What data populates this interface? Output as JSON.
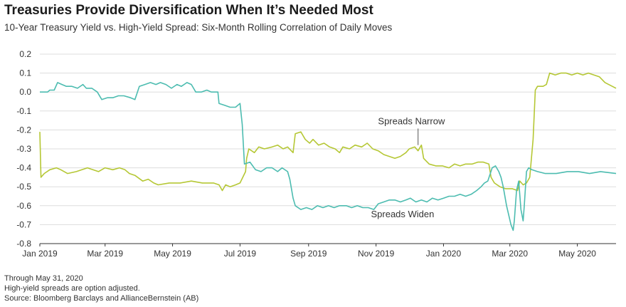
{
  "title": "Treasuries Provide Diversification When It’s Needed Most",
  "subtitle": "10-Year Treasury Yield vs. High-Yield Spread: Six-Month Rolling Correlation of Daily Moves",
  "notes": [
    "Through May 31, 2020",
    "High-yield spreads are option adjusted.",
    "Source: Bloomberg Barclays and AllianceBernstein (AB)"
  ],
  "colors": {
    "narrow": "#b5c734",
    "widen": "#4cbcb0",
    "grid": "#dddddd",
    "axis": "#333333"
  },
  "chart_data": {
    "type": "line",
    "ylim": [
      -0.8,
      0.2
    ],
    "yticks": [
      "0.2",
      "0.1",
      "0.0",
      "-0.1",
      "-0.2",
      "-0.3",
      "-0.4",
      "-0.5",
      "-0.6",
      "-0.7",
      "-0.8"
    ],
    "xlim": [
      "2019-01-01",
      "2020-06-05"
    ],
    "xticks": [
      {
        "date": "2019-01-01",
        "label": "Jan 2019"
      },
      {
        "date": "2019-03-01",
        "label": "Mar 2019"
      },
      {
        "date": "2019-05-01",
        "label": "May 2019"
      },
      {
        "date": "2019-07-01",
        "label": "Jul 2019"
      },
      {
        "date": "2019-09-01",
        "label": "Sep 2019"
      },
      {
        "date": "2019-11-01",
        "label": "Nov 2019"
      },
      {
        "date": "2020-01-01",
        "label": "Jan 2020"
      },
      {
        "date": "2020-03-01",
        "label": "Mar 2020"
      },
      {
        "date": "2020-05-01",
        "label": "May 2020"
      }
    ],
    "annotations": [
      {
        "text": "Spreads Narrow",
        "date": "2019-12-03",
        "value": -0.17
      },
      {
        "text": "Spreads Widen",
        "date": "2019-11-25",
        "value": -0.66
      }
    ],
    "series": [
      {
        "name": "Spreads Narrow",
        "points": [
          [
            "2019-01-01",
            -0.21
          ],
          [
            "2019-01-02",
            -0.45
          ],
          [
            "2019-01-05",
            -0.43
          ],
          [
            "2019-01-10",
            -0.41
          ],
          [
            "2019-01-16",
            -0.4
          ],
          [
            "2019-01-20",
            -0.41
          ],
          [
            "2019-01-26",
            -0.43
          ],
          [
            "2019-02-03",
            -0.42
          ],
          [
            "2019-02-08",
            -0.41
          ],
          [
            "2019-02-13",
            -0.4
          ],
          [
            "2019-02-18",
            -0.41
          ],
          [
            "2019-02-23",
            -0.42
          ],
          [
            "2019-03-01",
            -0.4
          ],
          [
            "2019-03-08",
            -0.41
          ],
          [
            "2019-03-14",
            -0.4
          ],
          [
            "2019-03-19",
            -0.41
          ],
          [
            "2019-03-23",
            -0.43
          ],
          [
            "2019-03-28",
            -0.44
          ],
          [
            "2019-04-04",
            -0.47
          ],
          [
            "2019-04-09",
            -0.46
          ],
          [
            "2019-04-14",
            -0.48
          ],
          [
            "2019-04-18",
            -0.49
          ],
          [
            "2019-04-28",
            -0.48
          ],
          [
            "2019-05-08",
            -0.48
          ],
          [
            "2019-05-18",
            -0.47
          ],
          [
            "2019-05-28",
            -0.48
          ],
          [
            "2019-06-07",
            -0.48
          ],
          [
            "2019-06-12",
            -0.49
          ],
          [
            "2019-06-15",
            -0.52
          ],
          [
            "2019-06-18",
            -0.49
          ],
          [
            "2019-06-22",
            -0.5
          ],
          [
            "2019-06-27",
            -0.49
          ],
          [
            "2019-07-01",
            -0.48
          ],
          [
            "2019-07-06",
            -0.42
          ],
          [
            "2019-07-07",
            -0.35
          ],
          [
            "2019-07-09",
            -0.3
          ],
          [
            "2019-07-14",
            -0.32
          ],
          [
            "2019-07-18",
            -0.29
          ],
          [
            "2019-07-23",
            -0.3
          ],
          [
            "2019-07-30",
            -0.29
          ],
          [
            "2019-08-04",
            -0.28
          ],
          [
            "2019-08-09",
            -0.3
          ],
          [
            "2019-08-13",
            -0.29
          ],
          [
            "2019-08-18",
            -0.32
          ],
          [
            "2019-08-20",
            -0.22
          ],
          [
            "2019-08-25",
            -0.21
          ],
          [
            "2019-08-29",
            -0.25
          ],
          [
            "2019-09-02",
            -0.27
          ],
          [
            "2019-09-05",
            -0.25
          ],
          [
            "2019-09-10",
            -0.28
          ],
          [
            "2019-09-15",
            -0.27
          ],
          [
            "2019-09-20",
            -0.29
          ],
          [
            "2019-09-25",
            -0.3
          ],
          [
            "2019-09-29",
            -0.32
          ],
          [
            "2019-10-02",
            -0.29
          ],
          [
            "2019-10-08",
            -0.3
          ],
          [
            "2019-10-13",
            -0.28
          ],
          [
            "2019-10-19",
            -0.29
          ],
          [
            "2019-10-24",
            -0.27
          ],
          [
            "2019-10-29",
            -0.3
          ],
          [
            "2019-11-03",
            -0.31
          ],
          [
            "2019-11-08",
            -0.33
          ],
          [
            "2019-11-13",
            -0.34
          ],
          [
            "2019-11-18",
            -0.35
          ],
          [
            "2019-11-23",
            -0.34
          ],
          [
            "2019-11-28",
            -0.32
          ],
          [
            "2019-12-01",
            -0.3
          ],
          [
            "2019-12-06",
            -0.29
          ],
          [
            "2019-12-09",
            -0.31
          ],
          [
            "2019-12-12",
            -0.28
          ],
          [
            "2019-12-14",
            -0.35
          ],
          [
            "2019-12-19",
            -0.38
          ],
          [
            "2019-12-25",
            -0.39
          ],
          [
            "2019-12-31",
            -0.39
          ],
          [
            "2020-01-06",
            -0.4
          ],
          [
            "2020-01-11",
            -0.38
          ],
          [
            "2020-01-16",
            -0.39
          ],
          [
            "2020-01-21",
            -0.38
          ],
          [
            "2020-01-27",
            -0.38
          ],
          [
            "2020-02-01",
            -0.37
          ],
          [
            "2020-02-06",
            -0.37
          ],
          [
            "2020-02-11",
            -0.38
          ],
          [
            "2020-02-13",
            -0.45
          ],
          [
            "2020-02-16",
            -0.48
          ],
          [
            "2020-02-21",
            -0.5
          ],
          [
            "2020-02-26",
            -0.51
          ],
          [
            "2020-03-03",
            -0.51
          ],
          [
            "2020-03-08",
            -0.52
          ],
          [
            "2020-03-10",
            -0.47
          ],
          [
            "2020-03-13",
            -0.49
          ],
          [
            "2020-03-16",
            -0.48
          ],
          [
            "2020-03-19",
            -0.45
          ],
          [
            "2020-03-22",
            -0.25
          ],
          [
            "2020-03-24",
            0.01
          ],
          [
            "2020-03-26",
            0.03
          ],
          [
            "2020-03-31",
            0.03
          ],
          [
            "2020-04-03",
            0.04
          ],
          [
            "2020-04-06",
            0.1
          ],
          [
            "2020-04-11",
            0.09
          ],
          [
            "2020-04-16",
            0.1
          ],
          [
            "2020-04-21",
            0.1
          ],
          [
            "2020-04-26",
            0.09
          ],
          [
            "2020-05-01",
            0.1
          ],
          [
            "2020-05-06",
            0.09
          ],
          [
            "2020-05-11",
            0.1
          ],
          [
            "2020-05-16",
            0.09
          ],
          [
            "2020-05-21",
            0.08
          ],
          [
            "2020-05-26",
            0.05
          ],
          [
            "2020-06-05",
            0.02
          ]
        ]
      },
      {
        "name": "Spreads Widen",
        "points": [
          [
            "2019-01-01",
            0.0
          ],
          [
            "2019-01-08",
            0.0
          ],
          [
            "2019-01-10",
            0.01
          ],
          [
            "2019-01-14",
            0.01
          ],
          [
            "2019-01-17",
            0.05
          ],
          [
            "2019-01-21",
            0.04
          ],
          [
            "2019-01-25",
            0.03
          ],
          [
            "2019-01-30",
            0.03
          ],
          [
            "2019-02-04",
            0.02
          ],
          [
            "2019-02-09",
            0.04
          ],
          [
            "2019-02-12",
            0.02
          ],
          [
            "2019-02-17",
            0.02
          ],
          [
            "2019-02-22",
            0.0
          ],
          [
            "2019-02-26",
            -0.04
          ],
          [
            "2019-03-03",
            -0.03
          ],
          [
            "2019-03-08",
            -0.03
          ],
          [
            "2019-03-13",
            -0.02
          ],
          [
            "2019-03-18",
            -0.02
          ],
          [
            "2019-03-24",
            -0.03
          ],
          [
            "2019-03-28",
            -0.04
          ],
          [
            "2019-04-01",
            0.03
          ],
          [
            "2019-04-06",
            0.04
          ],
          [
            "2019-04-11",
            0.05
          ],
          [
            "2019-04-16",
            0.04
          ],
          [
            "2019-04-20",
            0.05
          ],
          [
            "2019-04-25",
            0.04
          ],
          [
            "2019-04-30",
            0.02
          ],
          [
            "2019-05-05",
            0.04
          ],
          [
            "2019-05-09",
            0.03
          ],
          [
            "2019-05-14",
            0.05
          ],
          [
            "2019-05-18",
            0.04
          ],
          [
            "2019-05-22",
            0.0
          ],
          [
            "2019-05-27",
            0.0
          ],
          [
            "2019-06-01",
            0.01
          ],
          [
            "2019-06-05",
            0.0
          ],
          [
            "2019-06-11",
            0.0
          ],
          [
            "2019-06-12",
            -0.06
          ],
          [
            "2019-06-17",
            -0.07
          ],
          [
            "2019-06-22",
            -0.08
          ],
          [
            "2019-06-27",
            -0.08
          ],
          [
            "2019-07-01",
            -0.06
          ],
          [
            "2019-07-03",
            -0.17
          ],
          [
            "2019-07-05",
            -0.38
          ],
          [
            "2019-07-10",
            -0.37
          ],
          [
            "2019-07-15",
            -0.41
          ],
          [
            "2019-07-20",
            -0.42
          ],
          [
            "2019-07-25",
            -0.4
          ],
          [
            "2019-07-30",
            -0.4
          ],
          [
            "2019-08-04",
            -0.42
          ],
          [
            "2019-08-08",
            -0.4
          ],
          [
            "2019-08-13",
            -0.42
          ],
          [
            "2019-08-15",
            -0.46
          ],
          [
            "2019-08-18",
            -0.56
          ],
          [
            "2019-08-20",
            -0.6
          ],
          [
            "2019-08-25",
            -0.62
          ],
          [
            "2019-08-30",
            -0.61
          ],
          [
            "2019-09-04",
            -0.62
          ],
          [
            "2019-09-09",
            -0.6
          ],
          [
            "2019-09-14",
            -0.61
          ],
          [
            "2019-09-19",
            -0.6
          ],
          [
            "2019-09-24",
            -0.61
          ],
          [
            "2019-09-29",
            -0.6
          ],
          [
            "2019-10-05",
            -0.6
          ],
          [
            "2019-10-10",
            -0.61
          ],
          [
            "2019-10-15",
            -0.6
          ],
          [
            "2019-10-20",
            -0.61
          ],
          [
            "2019-10-25",
            -0.61
          ],
          [
            "2019-10-30",
            -0.62
          ],
          [
            "2019-11-03",
            -0.59
          ],
          [
            "2019-11-08",
            -0.58
          ],
          [
            "2019-11-13",
            -0.57
          ],
          [
            "2019-11-18",
            -0.57
          ],
          [
            "2019-11-23",
            -0.58
          ],
          [
            "2019-11-28",
            -0.57
          ],
          [
            "2019-12-02",
            -0.56
          ],
          [
            "2019-12-07",
            -0.58
          ],
          [
            "2019-12-12",
            -0.57
          ],
          [
            "2019-12-17",
            -0.58
          ],
          [
            "2019-12-22",
            -0.56
          ],
          [
            "2019-12-27",
            -0.57
          ],
          [
            "2020-01-01",
            -0.56
          ],
          [
            "2020-01-06",
            -0.55
          ],
          [
            "2020-01-11",
            -0.55
          ],
          [
            "2020-01-16",
            -0.54
          ],
          [
            "2020-01-21",
            -0.55
          ],
          [
            "2020-01-26",
            -0.54
          ],
          [
            "2020-01-31",
            -0.52
          ],
          [
            "2020-02-04",
            -0.5
          ],
          [
            "2020-02-07",
            -0.48
          ],
          [
            "2020-02-10",
            -0.47
          ],
          [
            "2020-02-14",
            -0.4
          ],
          [
            "2020-02-17",
            -0.39
          ],
          [
            "2020-02-20",
            -0.42
          ],
          [
            "2020-02-22",
            -0.45
          ],
          [
            "2020-02-24",
            -0.5
          ],
          [
            "2020-02-27",
            -0.6
          ],
          [
            "2020-03-02",
            -0.7
          ],
          [
            "2020-03-04",
            -0.73
          ],
          [
            "2020-03-05",
            -0.68
          ],
          [
            "2020-03-07",
            -0.52
          ],
          [
            "2020-03-09",
            -0.47
          ],
          [
            "2020-03-11",
            -0.62
          ],
          [
            "2020-03-13",
            -0.68
          ],
          [
            "2020-03-14",
            -0.6
          ],
          [
            "2020-03-16",
            -0.42
          ],
          [
            "2020-03-18",
            -0.4
          ],
          [
            "2020-03-21",
            -0.41
          ],
          [
            "2020-03-26",
            -0.42
          ],
          [
            "2020-04-02",
            -0.43
          ],
          [
            "2020-04-12",
            -0.43
          ],
          [
            "2020-04-22",
            -0.42
          ],
          [
            "2020-05-02",
            -0.42
          ],
          [
            "2020-05-12",
            -0.43
          ],
          [
            "2020-05-22",
            -0.42
          ],
          [
            "2020-06-05",
            -0.43
          ]
        ]
      }
    ]
  }
}
